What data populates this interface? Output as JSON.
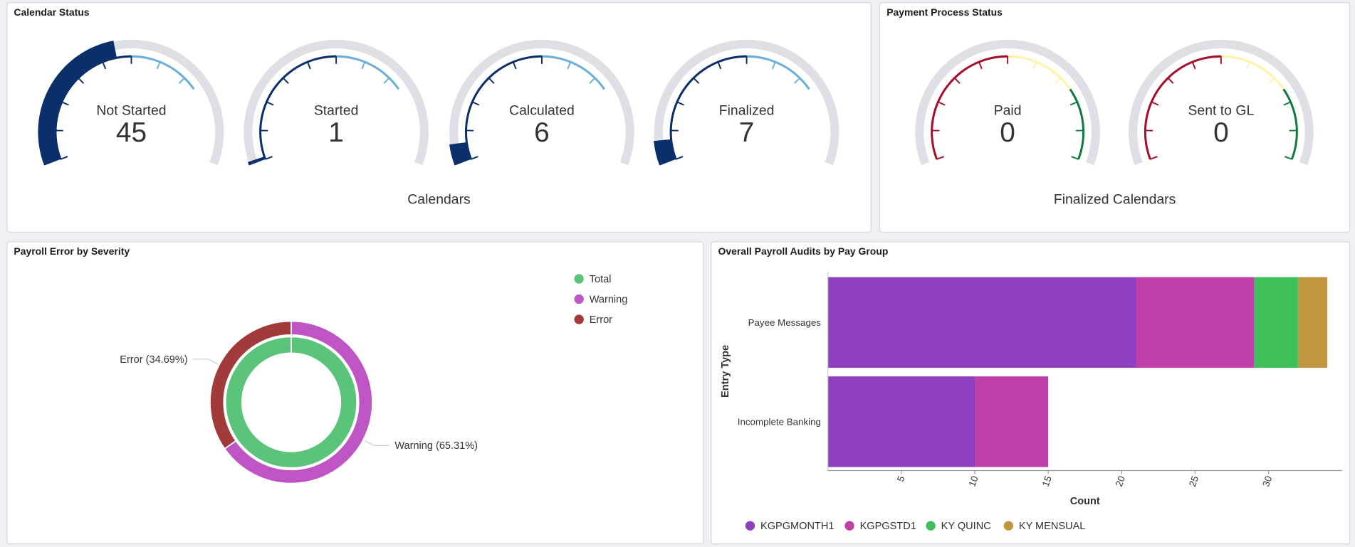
{
  "chart_data": [
    {
      "type": "gauge",
      "title": "Calendar Status",
      "xlabel": "Calendars",
      "categories": [
        "Not Started",
        "Started",
        "Calculated",
        "Finalized"
      ],
      "values": [
        45,
        1,
        6,
        7
      ],
      "ylim": [
        0,
        100
      ],
      "yticks": [
        0,
        10,
        20,
        30,
        40,
        50,
        60,
        70,
        80,
        90,
        100
      ],
      "color": "#0b2f6b",
      "track_color": "#dfe0e5",
      "bands": [
        {
          "from": 0,
          "to": 50,
          "color": "#0b2f6b"
        },
        {
          "from": 50,
          "to": 75,
          "color": "#6baed6"
        }
      ]
    },
    {
      "type": "gauge",
      "title": "Payment Process Status",
      "xlabel": "Finalized Calendars",
      "categories": [
        "Paid",
        "Sent to GL"
      ],
      "values": [
        0,
        0
      ],
      "ylim": [
        0,
        100
      ],
      "yticks": [
        0,
        10,
        20,
        30,
        40,
        50,
        60,
        70,
        80,
        90,
        100
      ],
      "color": "#0b2f6b",
      "track_color": "#dfe0e5",
      "bands": [
        {
          "from": 0,
          "to": 50,
          "color": "#a50d2b"
        },
        {
          "from": 50,
          "to": 75,
          "color": "#fff3a8"
        },
        {
          "from": 75,
          "to": 100,
          "color": "#117a3e"
        }
      ]
    },
    {
      "type": "pie",
      "title": "Payroll Error by Severity",
      "categories": [
        "Total",
        "Warning",
        "Error"
      ],
      "values": [
        100,
        65.31,
        34.69
      ],
      "value_labels": [
        null,
        "Warning (65.31%)",
        "Error (34.69%)"
      ],
      "ring": [
        0,
        1,
        1
      ],
      "colors": [
        "#5cc47a",
        "#bf55c4",
        "#a33a3a"
      ],
      "legend": "top-right"
    },
    {
      "type": "bar",
      "orientation": "horizontal",
      "stacked": true,
      "title": "Overall Payroll Audits by Pay Group",
      "xlabel": "Count",
      "ylabel": "Entry Type",
      "categories": [
        "Payee Messages",
        "Incomplete Banking"
      ],
      "series": [
        {
          "name": "KGPGMONTH1",
          "color": "#8e3fc2",
          "values": [
            21,
            10
          ]
        },
        {
          "name": "KGPGSTD1",
          "color": "#c13fa8",
          "values": [
            8,
            5
          ]
        },
        {
          "name": "KY QUINC",
          "color": "#3fbf5a",
          "values": [
            3,
            0
          ]
        },
        {
          "name": "KY MENSUAL",
          "color": "#c0963e",
          "values": [
            2,
            0
          ]
        }
      ],
      "xlim": [
        0,
        35
      ],
      "xticks": [
        5,
        10,
        15,
        20,
        25,
        30
      ],
      "legend": "bottom"
    }
  ]
}
